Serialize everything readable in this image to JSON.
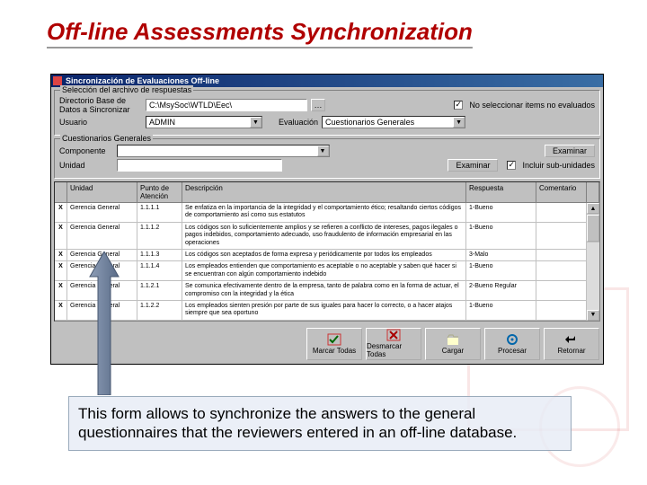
{
  "slide": {
    "title": "Off-line Assessments Synchronization"
  },
  "window": {
    "title": "Sincronización de Evaluaciones Off-line"
  },
  "groupFile": {
    "label": "Selección del archivo de respuestas",
    "dirLabel": "Directorio Base de Datos a Sincronizar",
    "dirValue": "C:\\MsySoc\\WTLD\\Eec\\",
    "userLabel": "Usuario",
    "userValue": "ADMIN",
    "evalLabel": "Evaluación",
    "evalValue": "Cuestionarios Generales",
    "noSelectLabel": "No seleccionar items no evaluados"
  },
  "groupQ": {
    "label": "Cuestionarios Generales",
    "compLabel": "Componente",
    "unitLabel": "Unidad",
    "btnExaminar": "Examinar",
    "chkInclude": "Incluir sub-unidades"
  },
  "grid": {
    "headers": {
      "unit": "Unidad",
      "point": "Punto de Atención",
      "desc": "Descripción",
      "resp": "Respuesta",
      "comm": "Comentario"
    },
    "rows": [
      {
        "x": "X",
        "unit": "Gerencia General",
        "pt": "1.1.1.1",
        "desc": "Se enfatiza en la importancia de la integridad y el comportamiento ético; resaltando ciertos códigos de comportamiento así como sus estatutos",
        "resp": "1-Bueno",
        "com": ""
      },
      {
        "x": "X",
        "unit": "Gerencia General",
        "pt": "1.1.1.2",
        "desc": "Los códigos son lo suficientemente amplios y se refieren a conflicto de intereses, pagos ilegales o pagos indebidos, comportamiento adecuado, uso fraudulento de información empresarial en las operaciones",
        "resp": "1-Bueno",
        "com": ""
      },
      {
        "x": "X",
        "unit": "Gerencia General",
        "pt": "1.1.1.3",
        "desc": "Los códigos son aceptados de forma expresa y periódicamente por todos los empleados",
        "resp": "3-Malo",
        "com": ""
      },
      {
        "x": "X",
        "unit": "Gerencia General",
        "pt": "1.1.1.4",
        "desc": "Los empleados entienden que comportamiento es aceptable o no aceptable y saben qué hacer si se encuentran con algún comportamiento indebido",
        "resp": "1-Bueno",
        "com": ""
      },
      {
        "x": "X",
        "unit": "Gerencia General",
        "pt": "1.1.2.1",
        "desc": "Se comunica efectivamente dentro de la empresa, tanto de palabra como en la forma de actuar, el compromiso con la integridad y la ética",
        "resp": "2-Bueno Regular",
        "com": ""
      },
      {
        "x": "X",
        "unit": "Gerencia General",
        "pt": "1.1.2.2",
        "desc": "Los empleados sienten presión por parte de sus iguales para hacer lo correcto, o a hacer atajos siempre que sea oportuno",
        "resp": "1-Bueno",
        "com": ""
      }
    ]
  },
  "toolbar": {
    "markAll": "Marcar Todas",
    "unmarkAll": "Desmarcar Todas",
    "load": "Cargar",
    "process": "Procesar",
    "return": "Retornar"
  },
  "caption": "This form allows to synchronize the answers to the general questionnaires that the reviewers entered in an off-line database.",
  "colors": {
    "titleRed": "#b00000",
    "winGray": "#c0c0c0",
    "titlebarA": "#0a246a",
    "titlebarB": "#3a6ea5",
    "arrowFill": "#6a7d9a"
  }
}
